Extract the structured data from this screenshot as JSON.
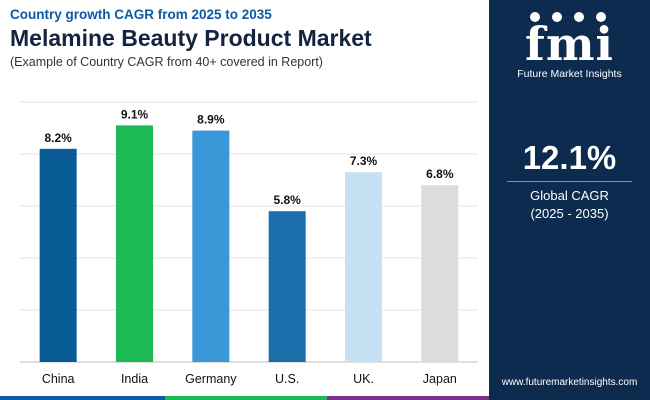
{
  "header": {
    "subtitle": "Country growth CAGR from 2025 to 2035",
    "title": "Melamine Beauty Product Market",
    "note": "(Example of Country CAGR from 40+ covered in Report)"
  },
  "chart_data": {
    "type": "bar",
    "categories": [
      "China",
      "India",
      "Germany",
      "U.S.",
      "UK.",
      "Japan"
    ],
    "values": [
      8.2,
      9.1,
      8.9,
      5.8,
      7.3,
      6.8
    ],
    "value_labels": [
      "8.2%",
      "9.1%",
      "8.9%",
      "5.8%",
      "7.3%",
      "6.8%"
    ],
    "colors": [
      "#0a5c96",
      "#1db954",
      "#3a97d8",
      "#1a6fab",
      "#c6e1f4",
      "#dcdcdc"
    ],
    "ylim": [
      0,
      10
    ],
    "grid": true,
    "title": "",
    "xlabel": "",
    "ylabel": ""
  },
  "sidebar": {
    "logo_mark": "fmi",
    "logo_name": "Future Market Insights",
    "cagr_value": "12.1%",
    "cagr_label": "Global CAGR",
    "cagr_period": "(2025 - 2035)",
    "url": "www.futuremarketinsights.com"
  },
  "theme": {
    "panel_color": "#0d2a4f",
    "accent_blue": "#0b5aa6",
    "bottom_bar_colors": [
      "#0b5aa6",
      "#1db954",
      "#7a2f8e",
      "#0b5aa6"
    ]
  }
}
